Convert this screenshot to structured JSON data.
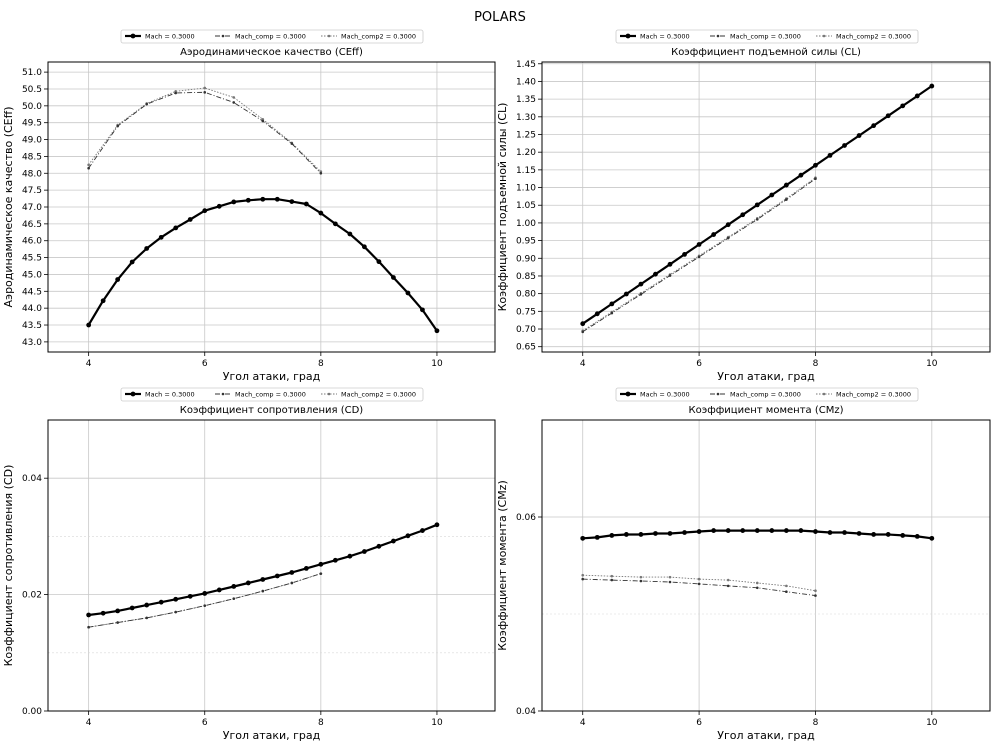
{
  "figure": {
    "suptitle": "POLARS"
  },
  "chart_data": [
    {
      "type": "line",
      "title": "Аэродинамическое качество (CEff)",
      "xlabel": "Угол атаки, град",
      "ylabel": "Аэродинамическое качество (CEff)",
      "xlim": [
        3.3,
        11.0
      ],
      "ylim": [
        42.7,
        51.3
      ],
      "xticks": [
        "4",
        "6",
        "8",
        "10"
      ],
      "yticks": [
        "43.0",
        "43.5",
        "44.0",
        "44.5",
        "45.0",
        "45.5",
        "46.0",
        "46.5",
        "47.0",
        "47.5",
        "48.0",
        "48.5",
        "49.0",
        "49.5",
        "50.0",
        "50.5",
        "51.0"
      ],
      "grid": true,
      "legend": {
        "position": "top",
        "entries": [
          "Mach = 0.3000",
          "Mach_comp = 0.3000",
          "Mach_comp2 = 0.3000"
        ]
      },
      "series": [
        {
          "name": "Mach = 0.3000",
          "x": [
            4,
            4.25,
            4.5,
            4.75,
            5,
            5.25,
            5.5,
            5.75,
            6,
            6.25,
            6.5,
            6.75,
            7,
            7.25,
            7.5,
            7.75,
            8,
            8.25,
            8.5,
            8.75,
            9,
            9.25,
            9.5,
            9.75,
            10
          ],
          "y": [
            43.5,
            44.22,
            44.85,
            45.37,
            45.77,
            46.1,
            46.38,
            46.63,
            46.89,
            47.02,
            47.15,
            47.2,
            47.23,
            47.23,
            47.16,
            47.09,
            46.82,
            46.5,
            46.2,
            45.82,
            45.38,
            44.91,
            44.45,
            43.95,
            43.33
          ]
        },
        {
          "name": "Mach_comp = 0.3000",
          "x": [
            4,
            4.5,
            5,
            5.5,
            6,
            6.5,
            7,
            7.5,
            8
          ],
          "y": [
            48.15,
            49.4,
            50.05,
            50.38,
            50.4,
            50.1,
            49.55,
            48.88,
            48.0
          ]
        },
        {
          "name": "Mach_comp2 = 0.3000",
          "x": [
            4,
            4.5,
            5,
            5.5,
            6,
            6.5,
            7,
            7.5,
            8
          ],
          "y": [
            48.25,
            49.43,
            50.07,
            50.43,
            50.53,
            50.25,
            49.6,
            48.9,
            48.05
          ]
        }
      ]
    },
    {
      "type": "line",
      "title": "Коэффициент подъемной силы (CL)",
      "xlabel": "Угол атаки, град",
      "ylabel": "Коэффициент подъемной силы (CL)",
      "xlim": [
        3.3,
        11.0
      ],
      "ylim": [
        0.635,
        1.455
      ],
      "xticks": [
        "4",
        "6",
        "8",
        "10"
      ],
      "yticks": [
        "0.65",
        "0.70",
        "0.75",
        "0.80",
        "0.85",
        "0.90",
        "0.95",
        "1.00",
        "1.05",
        "1.10",
        "1.15",
        "1.20",
        "1.25",
        "1.30",
        "1.35",
        "1.40",
        "1.45"
      ],
      "grid": true,
      "legend": {
        "position": "top",
        "entries": [
          "Mach = 0.3000",
          "Mach_comp = 0.3000",
          "Mach_comp2 = 0.3000"
        ]
      },
      "series": [
        {
          "name": "Mach = 0.3000",
          "x": [
            4,
            4.25,
            4.5,
            4.75,
            5,
            5.25,
            5.5,
            5.75,
            6,
            6.25,
            6.5,
            6.75,
            7,
            7.25,
            7.5,
            7.75,
            8,
            8.25,
            8.5,
            8.75,
            9,
            9.25,
            9.5,
            9.75,
            10
          ],
          "y": [
            0.715,
            0.743,
            0.771,
            0.799,
            0.827,
            0.855,
            0.883,
            0.911,
            0.939,
            0.967,
            0.995,
            1.023,
            1.051,
            1.079,
            1.107,
            1.135,
            1.163,
            1.191,
            1.219,
            1.247,
            1.275,
            1.303,
            1.331,
            1.359,
            1.387
          ]
        },
        {
          "name": "Mach_comp = 0.3000",
          "x": [
            4,
            4.5,
            5,
            5.5,
            6,
            6.5,
            7,
            7.5,
            8
          ],
          "y": [
            0.692,
            0.745,
            0.798,
            0.851,
            0.904,
            0.957,
            1.01,
            1.066,
            1.125
          ]
        },
        {
          "name": "Mach_comp2 = 0.3000",
          "x": [
            4,
            4.5,
            5,
            5.5,
            6,
            6.5,
            7,
            7.5,
            8
          ],
          "y": [
            0.695,
            0.748,
            0.801,
            0.854,
            0.907,
            0.96,
            1.013,
            1.069,
            1.128
          ]
        }
      ]
    },
    {
      "type": "line",
      "title": "Коэффициент сопротивления (CD)",
      "xlabel": "Угол атаки, град",
      "ylabel": "Коэффициент сопротивления (CD)",
      "xlim": [
        3.3,
        11.0
      ],
      "ylim": [
        0.0,
        0.05
      ],
      "xticks": [
        "4",
        "6",
        "8",
        "10"
      ],
      "yticks": [
        "0.00",
        "0.02",
        "0.04"
      ],
      "yticks_values": [
        0.0,
        0.02,
        0.04
      ],
      "minor_grid_y": [
        0.01,
        0.03
      ],
      "grid": true,
      "legend": {
        "position": "top",
        "entries": [
          "Mach = 0.3000",
          "Mach_comp = 0.3000",
          "Mach_comp2 = 0.3000"
        ]
      },
      "series": [
        {
          "name": "Mach = 0.3000",
          "x": [
            4,
            4.25,
            4.5,
            4.75,
            5,
            5.25,
            5.5,
            5.75,
            6,
            6.25,
            6.5,
            6.75,
            7,
            7.25,
            7.5,
            7.75,
            8,
            8.25,
            8.5,
            8.75,
            9,
            9.25,
            9.5,
            9.75,
            10
          ],
          "y": [
            0.0165,
            0.0168,
            0.0172,
            0.0177,
            0.0182,
            0.0187,
            0.0192,
            0.0197,
            0.0202,
            0.0208,
            0.0214,
            0.022,
            0.0226,
            0.0232,
            0.0238,
            0.0245,
            0.0252,
            0.0259,
            0.0266,
            0.0274,
            0.0283,
            0.0292,
            0.0301,
            0.031,
            0.032
          ]
        },
        {
          "name": "Mach_comp = 0.3000",
          "x": [
            4,
            4.5,
            5,
            5.5,
            6,
            6.5,
            7,
            7.5,
            8
          ],
          "y": [
            0.0144,
            0.0152,
            0.016,
            0.017,
            0.0181,
            0.0193,
            0.0206,
            0.022,
            0.0236
          ]
        },
        {
          "name": "Mach_comp2 = 0.3000",
          "x": [
            4,
            4.5,
            5,
            5.5,
            6,
            6.5,
            7,
            7.5,
            8
          ],
          "y": [
            0.0144,
            0.0152,
            0.016,
            0.017,
            0.0181,
            0.0193,
            0.0206,
            0.022,
            0.0236
          ]
        }
      ]
    },
    {
      "type": "line",
      "title": "Коэффициент момента (CMz)",
      "xlabel": "Угол атаки, град",
      "ylabel": "Коэффициент момента (CMz)",
      "xlim": [
        3.3,
        11.0
      ],
      "ylim": [
        0.04,
        0.07
      ],
      "xticks": [
        "4",
        "6",
        "8",
        "10"
      ],
      "yticks": [
        "0.04",
        "0.06"
      ],
      "yticks_values": [
        0.04,
        0.06
      ],
      "minor_grid_y": [
        0.05,
        0.07
      ],
      "grid": true,
      "legend": {
        "position": "top",
        "entries": [
          "Mach = 0.3000",
          "Mach_comp = 0.3000",
          "Mach_comp2 = 0.3000"
        ]
      },
      "series": [
        {
          "name": "Mach = 0.3000",
          "x": [
            4,
            4.25,
            4.5,
            4.75,
            5,
            5.25,
            5.5,
            5.75,
            6,
            6.25,
            6.5,
            6.75,
            7,
            7.25,
            7.5,
            7.75,
            8,
            8.25,
            8.5,
            8.75,
            9,
            9.25,
            9.5,
            9.75,
            10
          ],
          "y": [
            0.0578,
            0.0579,
            0.0581,
            0.0582,
            0.0582,
            0.0583,
            0.0583,
            0.0584,
            0.0585,
            0.0586,
            0.0586,
            0.0586,
            0.0586,
            0.0586,
            0.0586,
            0.0586,
            0.0585,
            0.0584,
            0.0584,
            0.0583,
            0.0582,
            0.0582,
            0.0581,
            0.058,
            0.0578
          ]
        },
        {
          "name": "Mach_comp = 0.3000",
          "x": [
            4,
            4.5,
            5,
            5.5,
            6,
            6.5,
            7,
            7.5,
            8
          ],
          "y": [
            0.0536,
            0.0535,
            0.0534,
            0.0533,
            0.0531,
            0.0529,
            0.0527,
            0.0523,
            0.0519
          ]
        },
        {
          "name": "Mach_comp2 = 0.3000",
          "x": [
            4,
            4.5,
            5,
            5.5,
            6,
            6.5,
            7,
            7.5,
            8
          ],
          "y": [
            0.054,
            0.0539,
            0.0538,
            0.0538,
            0.0536,
            0.0535,
            0.0532,
            0.0529,
            0.0524
          ]
        }
      ]
    }
  ]
}
